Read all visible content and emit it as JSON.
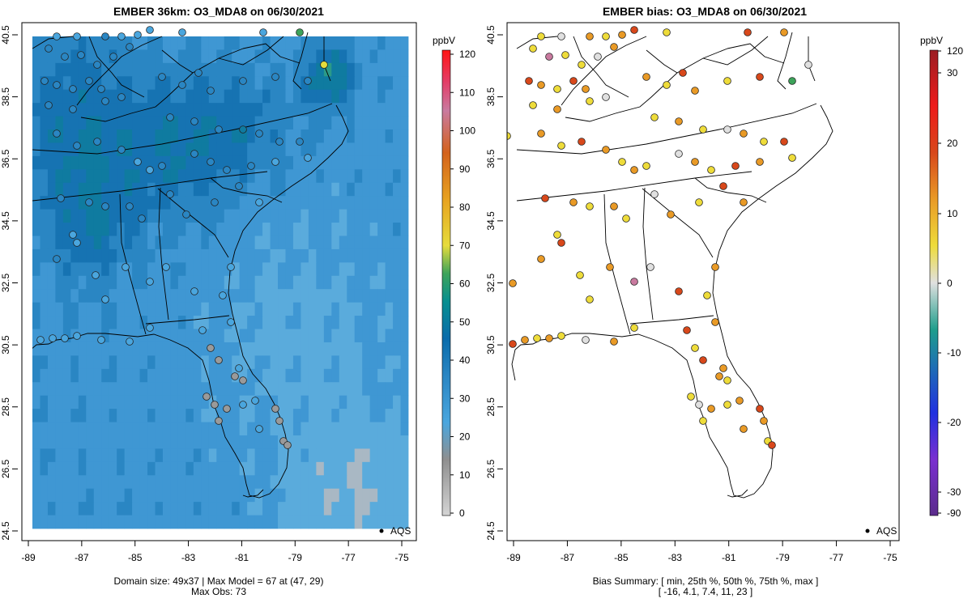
{
  "left_panel": {
    "title": "EMBER 36km: O3_MDA8 on 06/30/2021",
    "caption_line1": "Domain size: 49x37 | Max Model = 67 at (47, 29)",
    "caption_line2": "Max Obs: 73",
    "colorbar_unit": "ppbV",
    "colorbar_ticks": [
      "0",
      "10",
      "20",
      "30",
      "40",
      "50",
      "60",
      "70",
      "80",
      "90",
      "100",
      "110",
      "120"
    ],
    "legend_label": "AQS"
  },
  "right_panel": {
    "title": "EMBER bias: O3_MDA8 on 06/30/2021",
    "caption_line1": "Bias Summary: [ min, 25th %, 50th %, 75th %, max ]",
    "caption_line2": "[ -16,  4.1,  7.4,  11,  23 ]",
    "colorbar_unit": "ppbV",
    "colorbar_ticks": [
      "120",
      "30",
      "20",
      "10",
      "0",
      "-10",
      "-20",
      "-30",
      "-90"
    ],
    "legend_label": "AQS"
  },
  "axes": {
    "x_ticks": [
      "-89",
      "-87",
      "-85",
      "-83",
      "-81",
      "-79",
      "-77",
      "-75"
    ],
    "y_ticks": [
      "40.5",
      "38.5",
      "36.5",
      "34.5",
      "32.5",
      "30.5",
      "28.5",
      "26.5",
      "24.5"
    ],
    "lon_range": [
      -89.2,
      -74.6
    ],
    "lat_range": [
      24.4,
      40.8
    ]
  },
  "colors": {
    "conc_scale": [
      "#d4d4d4",
      "#9a9a9a",
      "#4aa6de",
      "#2a86c3",
      "#0a6cab",
      "#088f90",
      "#3da35a",
      "#e6dc3c",
      "#e7a221",
      "#d3621c",
      "#c97a9f",
      "#e23f6a",
      "#ff1515"
    ],
    "bias_scale": [
      "#5b2c8c",
      "#2030e0",
      "#1f6fb4",
      "#1f9e8c",
      "#e0e0e0",
      "#eedc3a",
      "#e99a26",
      "#d8481b",
      "#ee1b1b",
      "#9b1d23"
    ],
    "coast": "#000000",
    "point_outline": "#222222"
  },
  "stats": {
    "max_model": 67,
    "max_obs": 73,
    "bias_min": -16,
    "bias_p25": 4.1,
    "bias_p50": 7.4,
    "bias_p75": 11,
    "bias_max": 23
  }
}
